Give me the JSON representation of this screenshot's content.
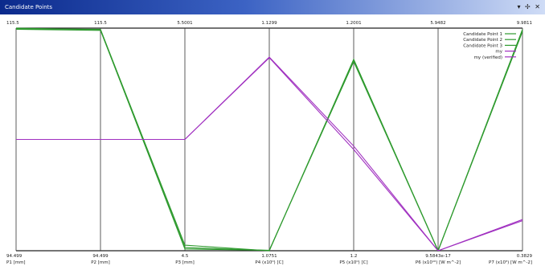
{
  "window": {
    "title": "Candidate Points",
    "controls": [
      "▾",
      "✢",
      "✕"
    ]
  },
  "chart_data": {
    "type": "parallel-coordinates",
    "axes": [
      {
        "top": "115.5",
        "bottom": "94.499",
        "label": "P1  [mm]"
      },
      {
        "top": "115.5",
        "bottom": "94.499",
        "label": "P2  [mm]"
      },
      {
        "top": "5.5001",
        "bottom": "4.5",
        "label": "P3  [mm]"
      },
      {
        "top": "1.1299",
        "bottom": "1.0751",
        "label": "P4  (x10⁰)  [C]"
      },
      {
        "top": "1.2001",
        "bottom": "1.2",
        "label": "P5  (x10⁰)  [C]"
      },
      {
        "top": "5.9482",
        "bottom": "9.5843e-17",
        "label": "P6  (x10¹⁰)  [W m^-2]"
      },
      {
        "top": "9.9811",
        "bottom": "0.3829",
        "label": "P7  (x10⁵)  [W m^-2]"
      }
    ],
    "series": [
      {
        "name": "Candidate Point 1",
        "color": "#2e9a2e",
        "values": [
          0.997,
          0.995,
          0.025,
          0.0,
          0.86,
          0.0,
          0.995
        ]
      },
      {
        "name": "Candidate Point 2",
        "color": "#2e9a2e",
        "values": [
          1.0,
          0.993,
          0.008,
          0.002,
          0.85,
          0.0,
          0.985
        ]
      },
      {
        "name": "Candidate Point 3",
        "color": "#2e9a2e",
        "values": [
          0.995,
          0.99,
          0.014,
          0.001,
          0.855,
          0.0,
          0.99
        ]
      },
      {
        "name": "my",
        "color": "#a030c0",
        "values": [
          0.5,
          0.5,
          0.5,
          0.87,
          0.47,
          0.0,
          0.14
        ]
      },
      {
        "name": "my (verified)",
        "color": "#a030c0",
        "values": [
          0.5,
          0.5,
          0.5,
          0.867,
          0.455,
          0.0,
          0.135
        ]
      }
    ],
    "legend_position": "top-right",
    "ylim": [
      0,
      1
    ]
  }
}
